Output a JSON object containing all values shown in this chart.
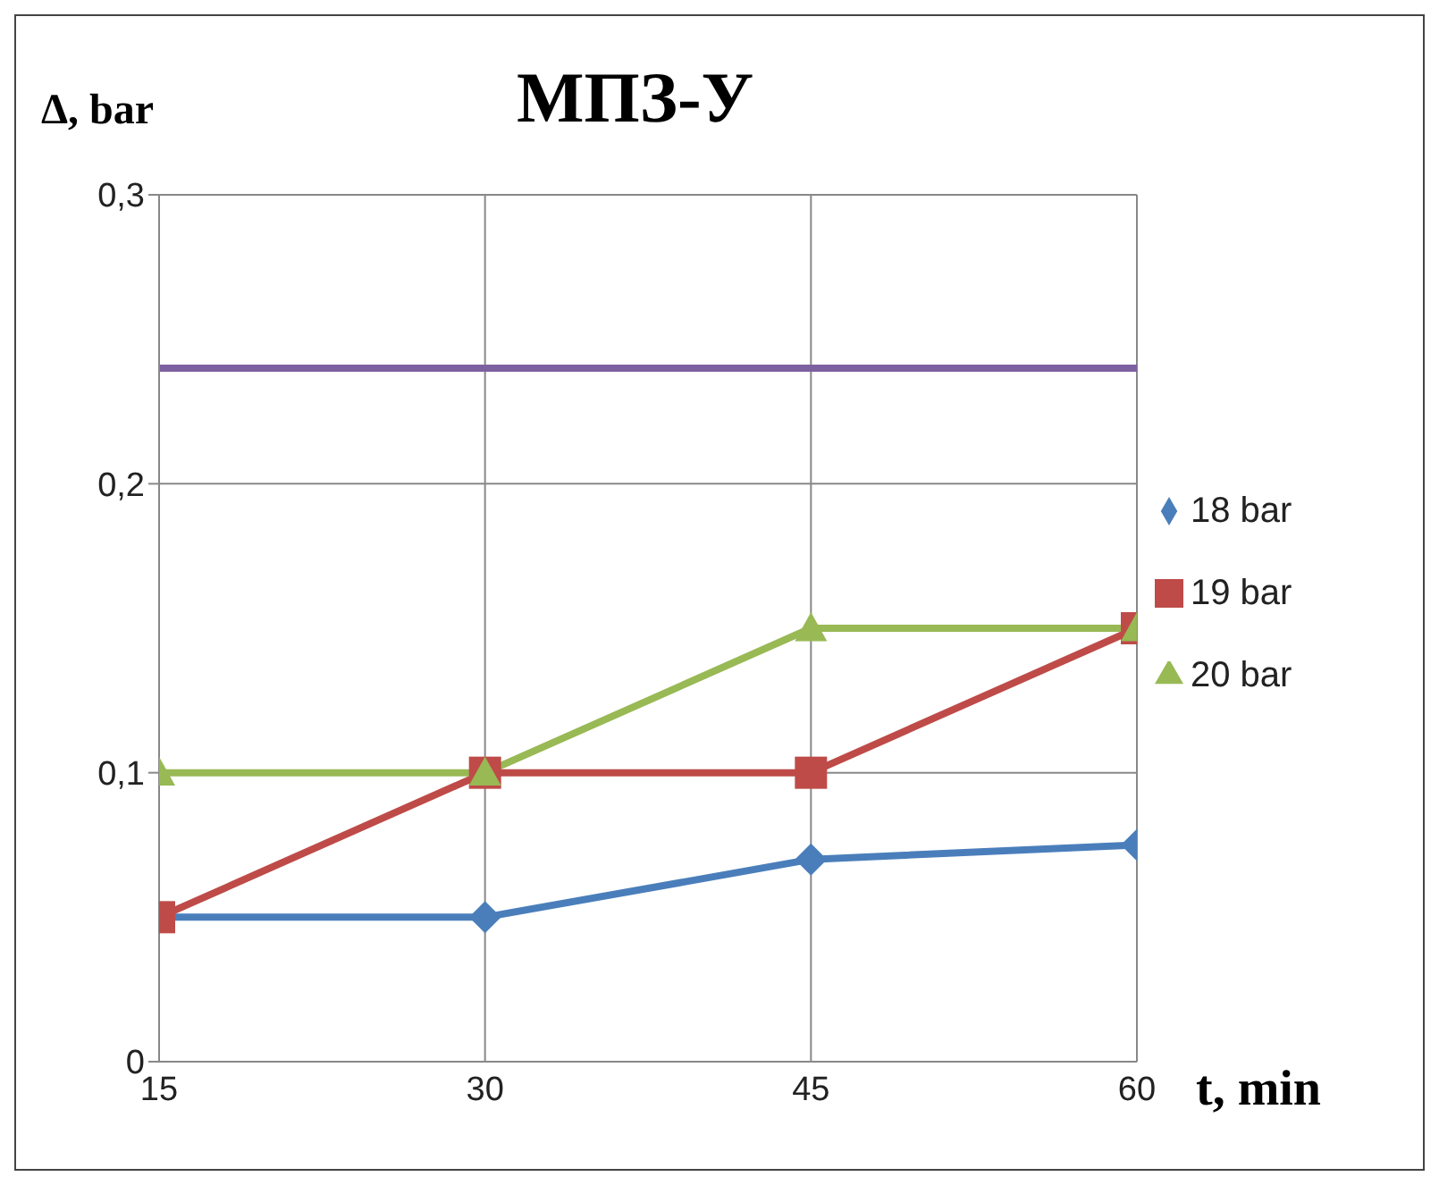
{
  "chart_data": {
    "type": "line",
    "title": "МПЗ-У",
    "xlabel": "t, min",
    "ylabel": "Δ, bar",
    "x": [
      15,
      30,
      45,
      60
    ],
    "series": [
      {
        "name": "18 bar",
        "color": "#4a7ebb",
        "marker": "diamond",
        "values": [
          0.05,
          0.05,
          0.07,
          0.075
        ]
      },
      {
        "name": "19 bar",
        "color": "#be4b48",
        "marker": "square",
        "values": [
          0.05,
          0.1,
          0.1,
          0.15
        ]
      },
      {
        "name": "20 bar",
        "color": "#98b954",
        "marker": "triangle",
        "values": [
          0.1,
          0.1,
          0.15,
          0.15
        ]
      }
    ],
    "ref_lines": [
      {
        "axis": "y",
        "value": 0.24,
        "color": "#7d60a0"
      }
    ],
    "xlim": [
      15,
      60
    ],
    "xticks": [
      15,
      30,
      45,
      60
    ],
    "ylim": [
      0,
      0.3
    ],
    "yticks": [
      0,
      {
        "value": 0.1,
        "label": "0,1"
      },
      {
        "value": 0.2,
        "label": "0,2"
      },
      {
        "value": 0.3,
        "label": "0,3"
      }
    ],
    "grid": true,
    "legend": "right"
  }
}
